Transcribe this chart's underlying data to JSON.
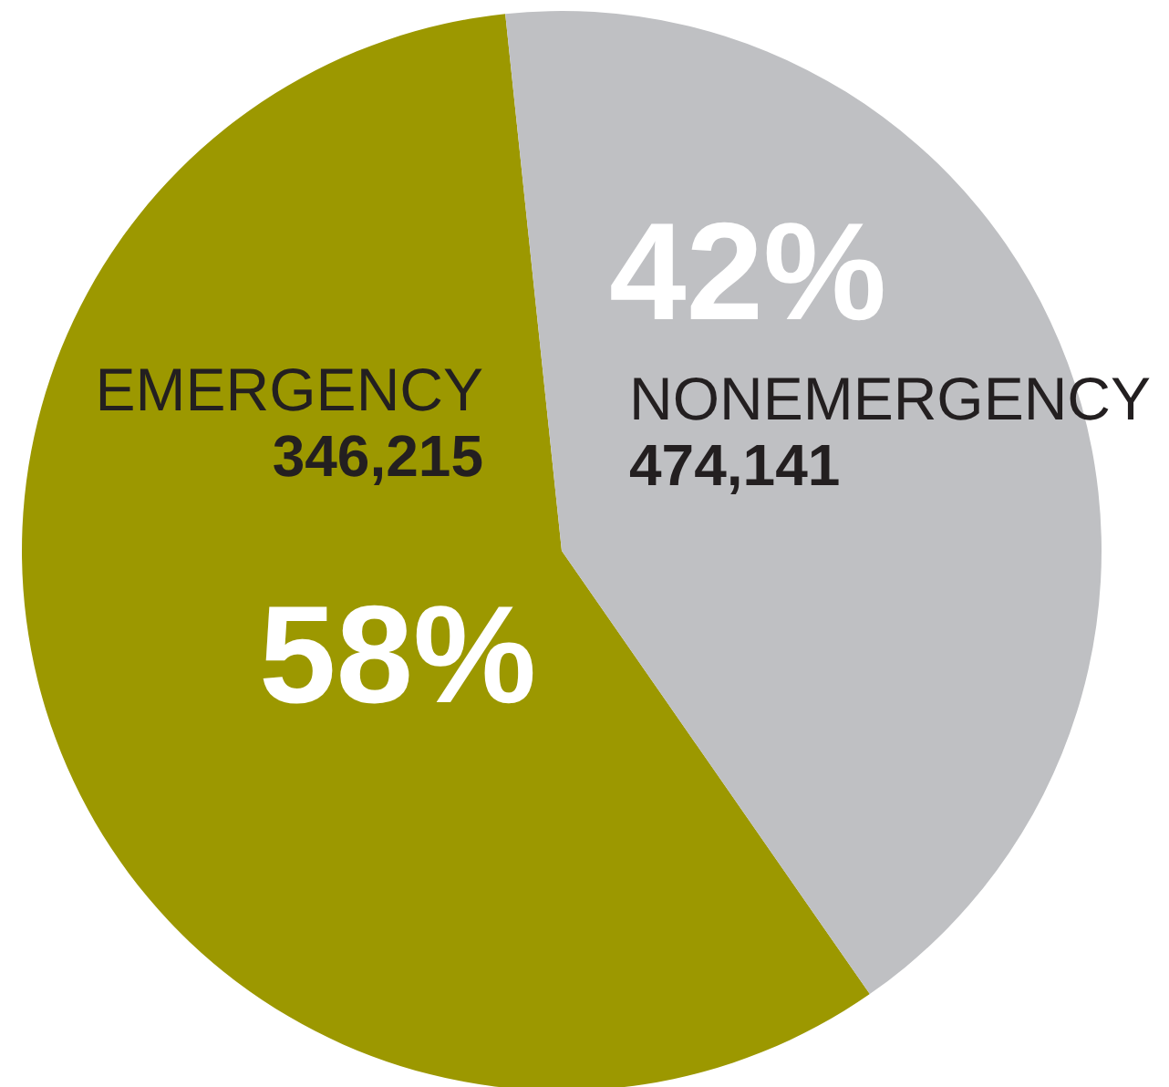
{
  "chart_data": {
    "type": "pie",
    "categories": [
      "EMERGENCY",
      "NONEMERGENCY"
    ],
    "values": [
      58,
      42
    ],
    "colors": [
      "#9c9800",
      "#bfc0c3"
    ],
    "value_labels": [
      "58%",
      "42%"
    ],
    "annotations": [
      "346,215",
      "474,141"
    ]
  }
}
